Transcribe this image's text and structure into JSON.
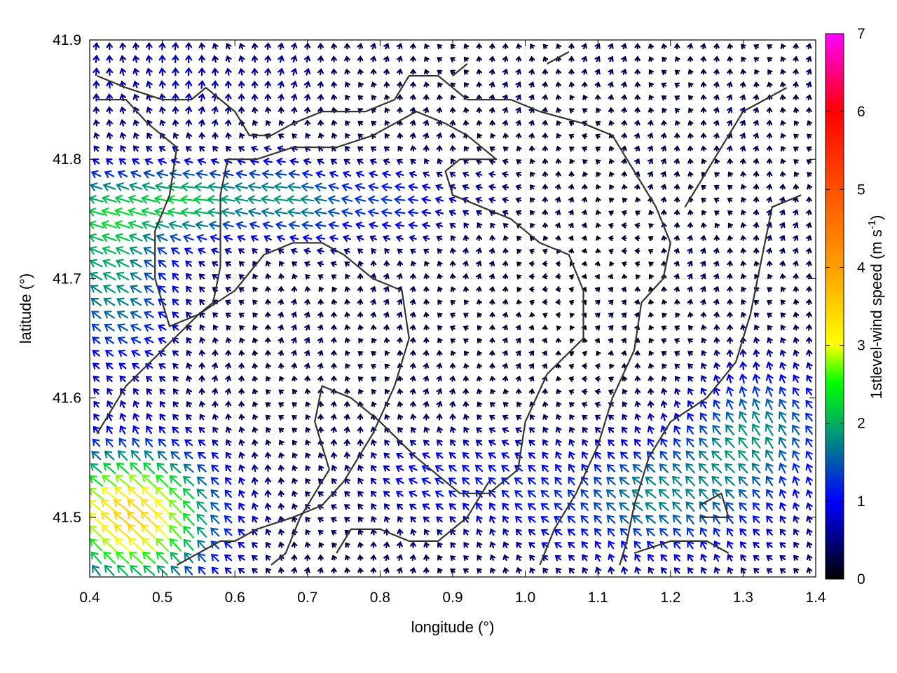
{
  "chart_data": {
    "type": "vector-field",
    "xlabel": "longitude (°)",
    "ylabel": "latitude (°)",
    "colorbar_label": "1stlevel-wind speed (m s",
    "colorbar_label_exp": "-1",
    "colorbar_label_end": ")",
    "xlim": [
      0.4,
      1.4
    ],
    "ylim": [
      41.45,
      41.9
    ],
    "xticks": [
      "0.4",
      "0.5",
      "0.6",
      "0.7",
      "0.8",
      "0.9",
      "1.0",
      "1.1",
      "1.2",
      "1.3",
      "1.4"
    ],
    "yticks": [
      "41.5",
      "41.6",
      "41.7",
      "41.8",
      "41.9"
    ],
    "colorbar_ticks": [
      "0",
      "1",
      "2",
      "3",
      "4",
      "5",
      "6",
      "7"
    ],
    "colorbar_range": [
      0,
      7
    ],
    "colormap": [
      "#000000",
      "#0000ff",
      "#00ff00",
      "#ffff00",
      "#ff8000",
      "#ff0000",
      "#ff00ff"
    ],
    "grid": true,
    "vector_grid_approx": {
      "nx": 55,
      "ny": 42
    },
    "coastline_color": "#333333",
    "coastlines": [
      [
        [
          0.41,
          41.87
        ],
        [
          0.45,
          41.86
        ],
        [
          0.5,
          41.85
        ],
        [
          0.54,
          41.85
        ],
        [
          0.56,
          41.86
        ],
        [
          0.58,
          41.85
        ],
        [
          0.6,
          41.84
        ],
        [
          0.62,
          41.82
        ],
        [
          0.65,
          41.82
        ],
        [
          0.68,
          41.83
        ],
        [
          0.72,
          41.84
        ],
        [
          0.78,
          41.84
        ],
        [
          0.82,
          41.85
        ],
        [
          0.84,
          41.87
        ],
        [
          0.88,
          41.87
        ],
        [
          0.92,
          41.85
        ],
        [
          0.98,
          41.85
        ],
        [
          1.02,
          41.84
        ],
        [
          1.08,
          41.83
        ],
        [
          1.12,
          41.82
        ],
        [
          1.15,
          41.79
        ],
        [
          1.18,
          41.76
        ],
        [
          1.2,
          41.73
        ],
        [
          1.19,
          41.7
        ],
        [
          1.16,
          41.68
        ],
        [
          1.15,
          41.64
        ],
        [
          1.12,
          41.6
        ],
        [
          1.1,
          41.56
        ],
        [
          1.07,
          41.52
        ],
        [
          1.04,
          41.49
        ],
        [
          1.02,
          41.46
        ]
      ],
      [
        [
          0.41,
          41.85
        ],
        [
          0.45,
          41.85
        ],
        [
          0.48,
          41.83
        ],
        [
          0.52,
          41.81
        ],
        [
          0.51,
          41.77
        ],
        [
          0.49,
          41.74
        ],
        [
          0.49,
          41.7
        ],
        [
          0.51,
          41.66
        ],
        [
          0.55,
          41.67
        ],
        [
          0.57,
          41.68
        ],
        [
          0.58,
          41.71
        ],
        [
          0.58,
          41.77
        ],
        [
          0.59,
          41.8
        ],
        [
          0.63,
          41.8
        ],
        [
          0.68,
          41.81
        ],
        [
          0.74,
          41.81
        ],
        [
          0.79,
          41.82
        ],
        [
          0.82,
          41.83
        ],
        [
          0.85,
          41.84
        ],
        [
          0.89,
          41.83
        ],
        [
          0.92,
          41.82
        ],
        [
          0.96,
          41.8
        ],
        [
          0.91,
          41.8
        ],
        [
          0.89,
          41.79
        ],
        [
          0.9,
          41.77
        ],
        [
          0.94,
          41.76
        ],
        [
          0.98,
          41.75
        ],
        [
          1.02,
          41.73
        ],
        [
          1.06,
          41.72
        ],
        [
          1.08,
          41.69
        ],
        [
          1.08,
          41.65
        ],
        [
          1.03,
          41.62
        ],
        [
          1.0,
          41.58
        ],
        [
          0.99,
          41.54
        ],
        [
          0.95,
          41.52
        ],
        [
          0.91,
          41.52
        ],
        [
          0.87,
          41.54
        ],
        [
          0.85,
          41.55
        ],
        [
          0.8,
          41.58
        ],
        [
          0.76,
          41.6
        ],
        [
          0.72,
          41.61
        ],
        [
          0.71,
          41.58
        ],
        [
          0.73,
          41.54
        ],
        [
          0.71,
          41.52
        ],
        [
          0.69,
          41.5
        ],
        [
          0.67,
          41.47
        ],
        [
          0.65,
          41.46
        ]
      ],
      [
        [
          0.41,
          41.57
        ],
        [
          0.45,
          41.61
        ],
        [
          0.5,
          41.64
        ],
        [
          0.55,
          41.67
        ],
        [
          0.6,
          41.69
        ],
        [
          0.64,
          41.72
        ],
        [
          0.68,
          41.73
        ],
        [
          0.72,
          41.73
        ],
        [
          0.75,
          41.72
        ],
        [
          0.79,
          41.7
        ],
        [
          0.83,
          41.69
        ],
        [
          0.84,
          41.65
        ],
        [
          0.82,
          41.61
        ],
        [
          0.79,
          41.57
        ],
        [
          0.75,
          41.53
        ],
        [
          0.72,
          41.51
        ],
        [
          0.68,
          41.5
        ],
        [
          0.63,
          41.49
        ],
        [
          0.6,
          41.48
        ],
        [
          0.58,
          41.48
        ],
        [
          0.55,
          41.47
        ],
        [
          0.52,
          41.46
        ]
      ],
      [
        [
          0.74,
          41.47
        ],
        [
          0.76,
          41.49
        ],
        [
          0.8,
          41.49
        ],
        [
          0.84,
          41.48
        ],
        [
          0.88,
          41.48
        ],
        [
          0.92,
          41.5
        ],
        [
          0.95,
          41.53
        ]
      ],
      [
        [
          1.36,
          41.86
        ],
        [
          1.33,
          41.85
        ],
        [
          1.3,
          41.84
        ],
        [
          1.28,
          41.82
        ],
        [
          1.25,
          41.79
        ],
        [
          1.22,
          41.76
        ]
      ],
      [
        [
          1.38,
          41.77
        ],
        [
          1.34,
          41.76
        ],
        [
          1.33,
          41.73
        ],
        [
          1.32,
          41.7
        ],
        [
          1.31,
          41.67
        ],
        [
          1.29,
          41.63
        ],
        [
          1.25,
          41.6
        ],
        [
          1.2,
          41.58
        ],
        [
          1.17,
          41.55
        ],
        [
          1.15,
          41.51
        ],
        [
          1.14,
          41.48
        ],
        [
          1.13,
          41.46
        ]
      ],
      [
        [
          1.24,
          41.51
        ],
        [
          1.27,
          41.52
        ],
        [
          1.28,
          41.5
        ],
        [
          1.24,
          41.5
        ]
      ],
      [
        [
          1.15,
          41.47
        ],
        [
          1.2,
          41.48
        ],
        [
          1.25,
          41.48
        ],
        [
          1.28,
          41.47
        ]
      ],
      [
        [
          0.92,
          41.88
        ],
        [
          0.9,
          41.87
        ]
      ],
      [
        [
          1.03,
          41.88
        ],
        [
          1.06,
          41.89
        ]
      ]
    ]
  }
}
